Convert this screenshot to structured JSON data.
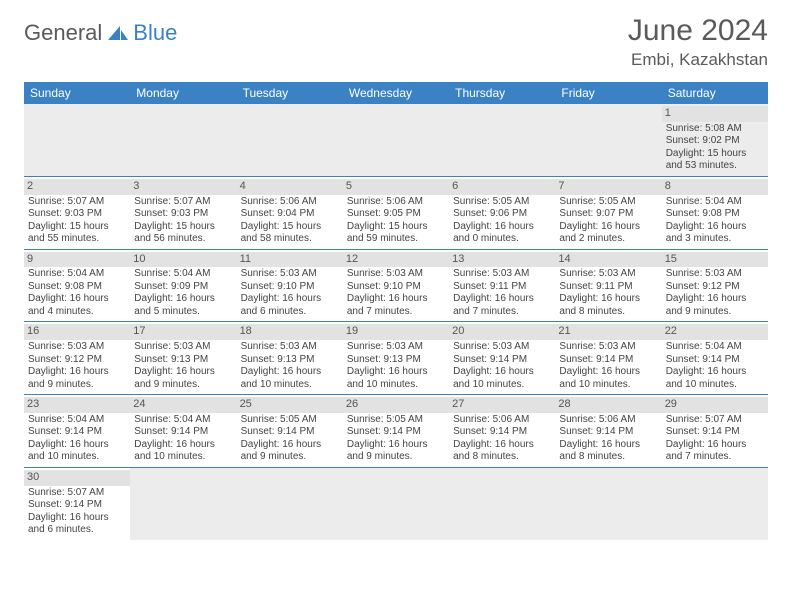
{
  "brand": {
    "part1": "General",
    "part2": "Blue"
  },
  "title": "June 2024",
  "location": "Embi, Kazakhstan",
  "colors": {
    "accent": "#3b82c4",
    "headerText": "#ffffff",
    "dayBar": "#e2e2e2",
    "muted": "#5a5a5a"
  },
  "dayHeaders": [
    "Sunday",
    "Monday",
    "Tuesday",
    "Wednesday",
    "Thursday",
    "Friday",
    "Saturday"
  ],
  "weeks": [
    [
      null,
      null,
      null,
      null,
      null,
      null,
      {
        "n": "1",
        "sr": "Sunrise: 5:08 AM",
        "ss": "Sunset: 9:02 PM",
        "dl": "Daylight: 15 hours and 53 minutes."
      }
    ],
    [
      {
        "n": "2",
        "sr": "Sunrise: 5:07 AM",
        "ss": "Sunset: 9:03 PM",
        "dl": "Daylight: 15 hours and 55 minutes."
      },
      {
        "n": "3",
        "sr": "Sunrise: 5:07 AM",
        "ss": "Sunset: 9:03 PM",
        "dl": "Daylight: 15 hours and 56 minutes."
      },
      {
        "n": "4",
        "sr": "Sunrise: 5:06 AM",
        "ss": "Sunset: 9:04 PM",
        "dl": "Daylight: 15 hours and 58 minutes."
      },
      {
        "n": "5",
        "sr": "Sunrise: 5:06 AM",
        "ss": "Sunset: 9:05 PM",
        "dl": "Daylight: 15 hours and 59 minutes."
      },
      {
        "n": "6",
        "sr": "Sunrise: 5:05 AM",
        "ss": "Sunset: 9:06 PM",
        "dl": "Daylight: 16 hours and 0 minutes."
      },
      {
        "n": "7",
        "sr": "Sunrise: 5:05 AM",
        "ss": "Sunset: 9:07 PM",
        "dl": "Daylight: 16 hours and 2 minutes."
      },
      {
        "n": "8",
        "sr": "Sunrise: 5:04 AM",
        "ss": "Sunset: 9:08 PM",
        "dl": "Daylight: 16 hours and 3 minutes."
      }
    ],
    [
      {
        "n": "9",
        "sr": "Sunrise: 5:04 AM",
        "ss": "Sunset: 9:08 PM",
        "dl": "Daylight: 16 hours and 4 minutes."
      },
      {
        "n": "10",
        "sr": "Sunrise: 5:04 AM",
        "ss": "Sunset: 9:09 PM",
        "dl": "Daylight: 16 hours and 5 minutes."
      },
      {
        "n": "11",
        "sr": "Sunrise: 5:03 AM",
        "ss": "Sunset: 9:10 PM",
        "dl": "Daylight: 16 hours and 6 minutes."
      },
      {
        "n": "12",
        "sr": "Sunrise: 5:03 AM",
        "ss": "Sunset: 9:10 PM",
        "dl": "Daylight: 16 hours and 7 minutes."
      },
      {
        "n": "13",
        "sr": "Sunrise: 5:03 AM",
        "ss": "Sunset: 9:11 PM",
        "dl": "Daylight: 16 hours and 7 minutes."
      },
      {
        "n": "14",
        "sr": "Sunrise: 5:03 AM",
        "ss": "Sunset: 9:11 PM",
        "dl": "Daylight: 16 hours and 8 minutes."
      },
      {
        "n": "15",
        "sr": "Sunrise: 5:03 AM",
        "ss": "Sunset: 9:12 PM",
        "dl": "Daylight: 16 hours and 9 minutes."
      }
    ],
    [
      {
        "n": "16",
        "sr": "Sunrise: 5:03 AM",
        "ss": "Sunset: 9:12 PM",
        "dl": "Daylight: 16 hours and 9 minutes."
      },
      {
        "n": "17",
        "sr": "Sunrise: 5:03 AM",
        "ss": "Sunset: 9:13 PM",
        "dl": "Daylight: 16 hours and 9 minutes."
      },
      {
        "n": "18",
        "sr": "Sunrise: 5:03 AM",
        "ss": "Sunset: 9:13 PM",
        "dl": "Daylight: 16 hours and 10 minutes."
      },
      {
        "n": "19",
        "sr": "Sunrise: 5:03 AM",
        "ss": "Sunset: 9:13 PM",
        "dl": "Daylight: 16 hours and 10 minutes."
      },
      {
        "n": "20",
        "sr": "Sunrise: 5:03 AM",
        "ss": "Sunset: 9:14 PM",
        "dl": "Daylight: 16 hours and 10 minutes."
      },
      {
        "n": "21",
        "sr": "Sunrise: 5:03 AM",
        "ss": "Sunset: 9:14 PM",
        "dl": "Daylight: 16 hours and 10 minutes."
      },
      {
        "n": "22",
        "sr": "Sunrise: 5:04 AM",
        "ss": "Sunset: 9:14 PM",
        "dl": "Daylight: 16 hours and 10 minutes."
      }
    ],
    [
      {
        "n": "23",
        "sr": "Sunrise: 5:04 AM",
        "ss": "Sunset: 9:14 PM",
        "dl": "Daylight: 16 hours and 10 minutes."
      },
      {
        "n": "24",
        "sr": "Sunrise: 5:04 AM",
        "ss": "Sunset: 9:14 PM",
        "dl": "Daylight: 16 hours and 10 minutes."
      },
      {
        "n": "25",
        "sr": "Sunrise: 5:05 AM",
        "ss": "Sunset: 9:14 PM",
        "dl": "Daylight: 16 hours and 9 minutes."
      },
      {
        "n": "26",
        "sr": "Sunrise: 5:05 AM",
        "ss": "Sunset: 9:14 PM",
        "dl": "Daylight: 16 hours and 9 minutes."
      },
      {
        "n": "27",
        "sr": "Sunrise: 5:06 AM",
        "ss": "Sunset: 9:14 PM",
        "dl": "Daylight: 16 hours and 8 minutes."
      },
      {
        "n": "28",
        "sr": "Sunrise: 5:06 AM",
        "ss": "Sunset: 9:14 PM",
        "dl": "Daylight: 16 hours and 8 minutes."
      },
      {
        "n": "29",
        "sr": "Sunrise: 5:07 AM",
        "ss": "Sunset: 9:14 PM",
        "dl": "Daylight: 16 hours and 7 minutes."
      }
    ],
    [
      {
        "n": "30",
        "sr": "Sunrise: 5:07 AM",
        "ss": "Sunset: 9:14 PM",
        "dl": "Daylight: 16 hours and 6 minutes."
      },
      null,
      null,
      null,
      null,
      null,
      null
    ]
  ]
}
